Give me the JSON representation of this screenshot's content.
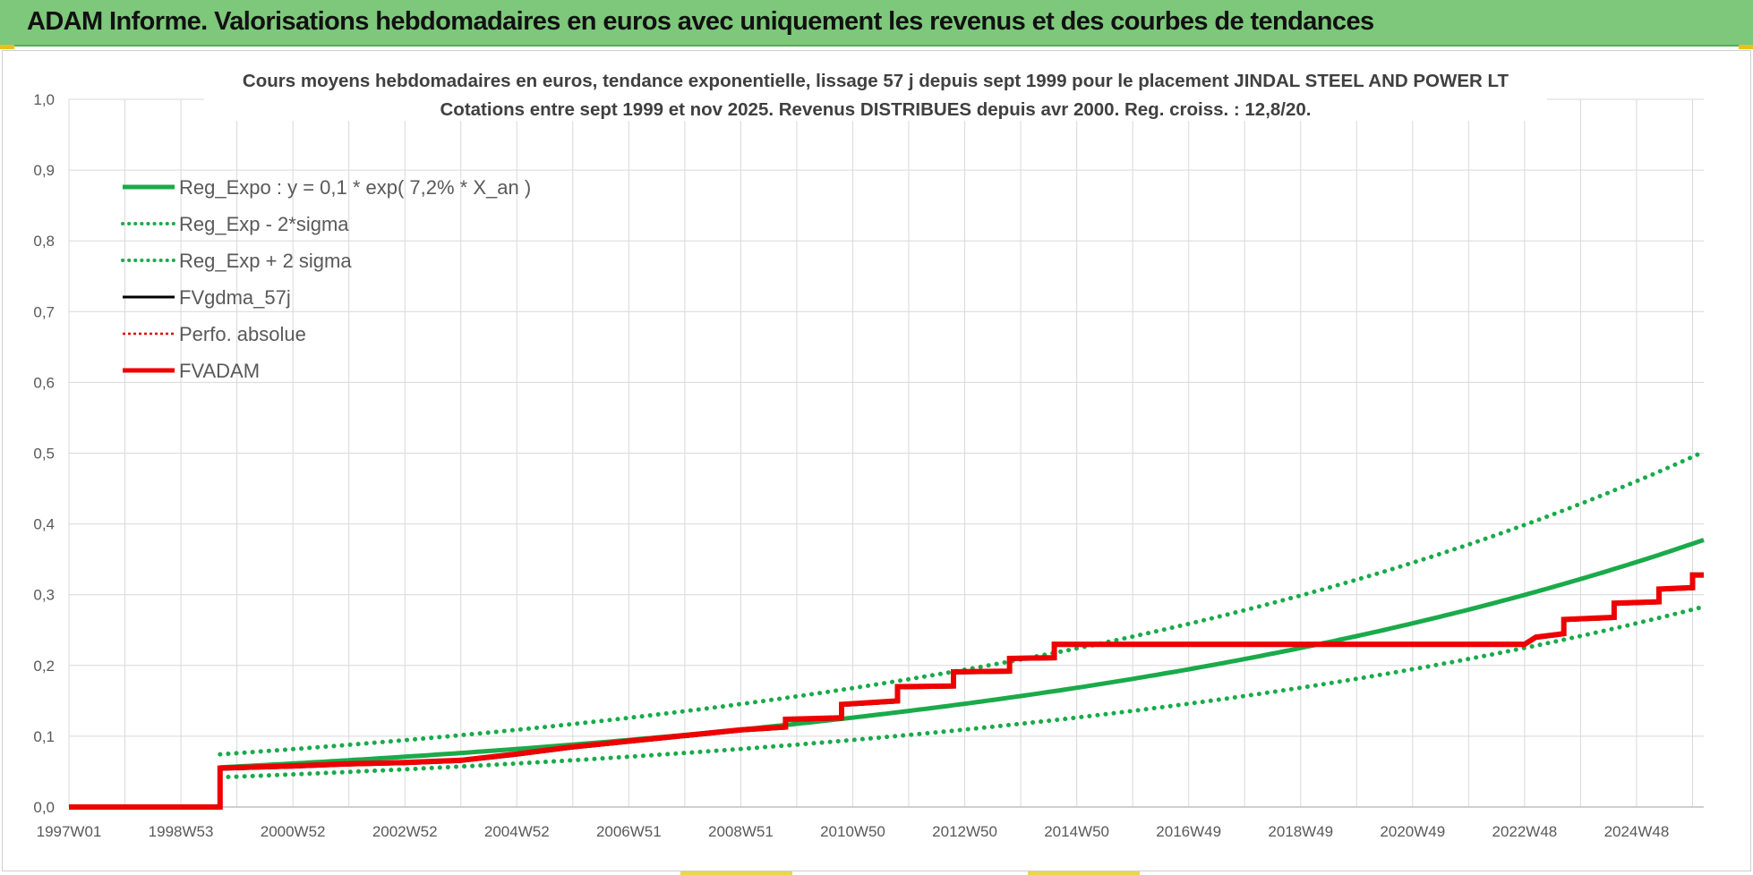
{
  "header": {
    "title": "ADAM Informe. Valorisations hebdomadaires en euros avec uniquement les revenus et des courbes de tendances"
  },
  "colors": {
    "header_bg": "#7dc87a",
    "reg_green": "#1aaa4a",
    "fv_black": "#000000",
    "perf_red": "#e00000",
    "fvadam_red": "#ee0000",
    "grid": "#d9d9d9"
  },
  "chart_data": {
    "type": "line",
    "title_line1": "Cours moyens hebdomadaires en euros, tendance exponentielle, lissage 57 j depuis sept 1999 pour le placement JINDAL STEEL AND POWER LT",
    "title_line2": "Cotations entre sept 1999 et nov 2025. Revenus DISTRIBUES depuis avr 2000. Reg. croiss. : 12,8/20.",
    "x_range": [
      1997.0,
      2026.2
    ],
    "ylim": [
      0,
      1.0
    ],
    "y_ticks": [
      "0,0",
      "0,1",
      "0,2",
      "0,3",
      "0,4",
      "0,5",
      "0,6",
      "0,7",
      "0,8",
      "0,9",
      "1,0"
    ],
    "y_tick_values": [
      0,
      0.1,
      0.2,
      0.3,
      0.4,
      0.5,
      0.6,
      0.7,
      0.8,
      0.9,
      1.0
    ],
    "x_ticks": [
      {
        "label": "1997W01",
        "x": 1997.0
      },
      {
        "label": "1998W53",
        "x": 1999.0
      },
      {
        "label": "2000W52",
        "x": 2001.0
      },
      {
        "label": "2002W52",
        "x": 2003.0
      },
      {
        "label": "2004W52",
        "x": 2005.0
      },
      {
        "label": "2006W51",
        "x": 2007.0
      },
      {
        "label": "2008W51",
        "x": 2009.0
      },
      {
        "label": "2010W50",
        "x": 2011.0
      },
      {
        "label": "2012W50",
        "x": 2013.0
      },
      {
        "label": "2014W50",
        "x": 2015.0
      },
      {
        "label": "2016W49",
        "x": 2017.0
      },
      {
        "label": "2018W49",
        "x": 2019.0
      },
      {
        "label": "2020W49",
        "x": 2021.0
      },
      {
        "label": "2022W48",
        "x": 2023.0
      },
      {
        "label": "2024W48",
        "x": 2025.0
      }
    ],
    "regression": {
      "a": 0.056,
      "rate": 0.072,
      "x_start": 1999.7,
      "x_end": 2026.2,
      "sigma_factor_low": 0.75,
      "sigma_factor_high": 1.33
    },
    "legend": [
      {
        "label": "Reg_Expo : y = 0,1 * exp( 7,2% *  X_an )",
        "style": "solid-thick",
        "color": "#1aaa4a"
      },
      {
        "label": "Reg_Exp - 2*sigma",
        "style": "dotted",
        "color": "#1aaa4a"
      },
      {
        "label": "Reg_Exp + 2 sigma",
        "style": "dotted",
        "color": "#1aaa4a"
      },
      {
        "label": "FVgdma_57j",
        "style": "solid",
        "color": "#000000"
      },
      {
        "label": "Perfo. absolue",
        "style": "dotted",
        "color": "#e00000"
      },
      {
        "label": "FVADAM",
        "style": "solid-thick",
        "color": "#ee0000"
      }
    ],
    "series": [
      {
        "name": "FVADAM",
        "points": [
          [
            1997.0,
            0.0
          ],
          [
            1999.7,
            0.0
          ],
          [
            1999.7,
            0.055
          ],
          [
            2001.0,
            0.058
          ],
          [
            2002.0,
            0.061
          ],
          [
            2003.0,
            0.063
          ],
          [
            2004.0,
            0.066
          ],
          [
            2005.0,
            0.075
          ],
          [
            2006.0,
            0.085
          ],
          [
            2007.0,
            0.093
          ],
          [
            2008.0,
            0.101
          ],
          [
            2009.0,
            0.109
          ],
          [
            2009.8,
            0.113
          ],
          [
            2009.8,
            0.124
          ],
          [
            2010.8,
            0.126
          ],
          [
            2010.8,
            0.145
          ],
          [
            2011.8,
            0.15
          ],
          [
            2011.8,
            0.17
          ],
          [
            2012.8,
            0.171
          ],
          [
            2012.8,
            0.191
          ],
          [
            2013.8,
            0.192
          ],
          [
            2013.8,
            0.21
          ],
          [
            2014.6,
            0.211
          ],
          [
            2014.6,
            0.23
          ],
          [
            2023.0,
            0.23
          ],
          [
            2023.2,
            0.24
          ],
          [
            2023.7,
            0.245
          ],
          [
            2023.7,
            0.265
          ],
          [
            2024.6,
            0.268
          ],
          [
            2024.6,
            0.288
          ],
          [
            2025.4,
            0.29
          ],
          [
            2025.4,
            0.308
          ],
          [
            2026.0,
            0.31
          ],
          [
            2026.0,
            0.328
          ],
          [
            2026.2,
            0.328
          ]
        ]
      }
    ]
  }
}
